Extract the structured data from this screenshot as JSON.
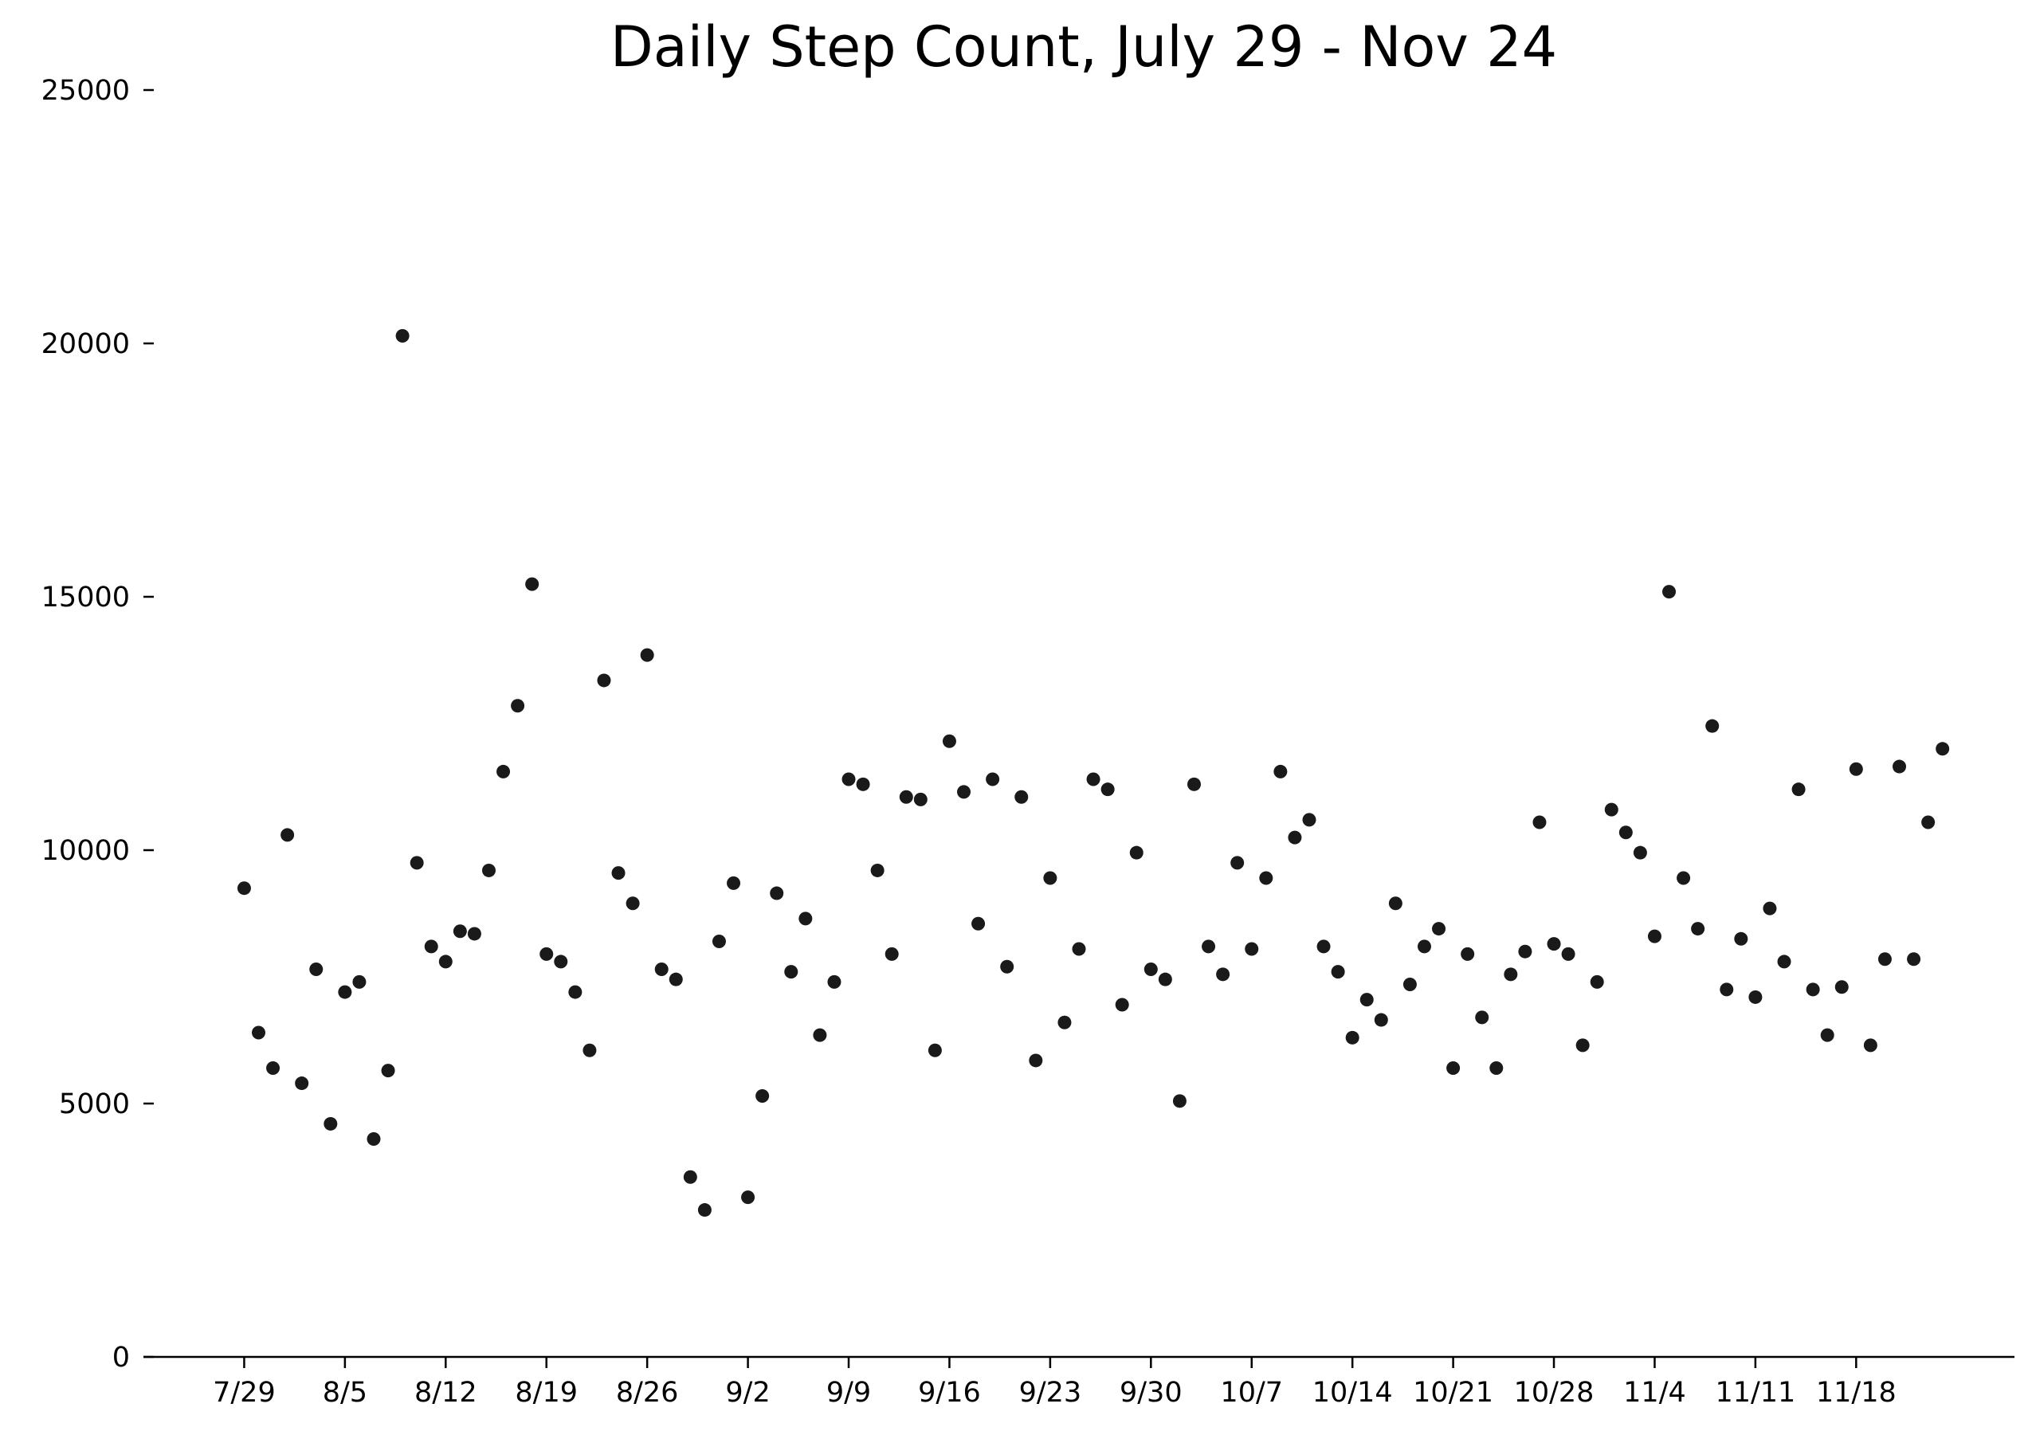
{
  "chart_data": {
    "type": "scatter",
    "title": "Daily Step Count, July 29 - Nov 24",
    "xlabel": "",
    "ylabel": "",
    "ylim": [
      0,
      25000
    ],
    "yticks": [
      0,
      5000,
      10000,
      15000,
      20000,
      25000
    ],
    "xticks": [
      "7/29",
      "8/5",
      "8/12",
      "8/19",
      "8/26",
      "9/2",
      "9/9",
      "9/16",
      "9/23",
      "9/30",
      "10/7",
      "10/14",
      "10/21",
      "10/28",
      "11/4",
      "11/11",
      "11/18"
    ],
    "x_range": [
      "7/22",
      "11/29"
    ],
    "grid": false,
    "legend": "none",
    "marker_color": "#1a1a1a",
    "x": [
      "7/29",
      "7/30",
      "7/31",
      "8/1",
      "8/2",
      "8/3",
      "8/4",
      "8/5",
      "8/6",
      "8/7",
      "8/8",
      "8/9",
      "8/10",
      "8/11",
      "8/12",
      "8/13",
      "8/14",
      "8/15",
      "8/16",
      "8/17",
      "8/18",
      "8/19",
      "8/20",
      "8/21",
      "8/22",
      "8/23",
      "8/24",
      "8/25",
      "8/26",
      "8/27",
      "8/28",
      "8/29",
      "8/30",
      "8/31",
      "9/1",
      "9/2",
      "9/3",
      "9/4",
      "9/5",
      "9/6",
      "9/7",
      "9/8",
      "9/9",
      "9/10",
      "9/11",
      "9/12",
      "9/13",
      "9/14",
      "9/15",
      "9/16",
      "9/17",
      "9/18",
      "9/19",
      "9/20",
      "9/21",
      "9/22",
      "9/23",
      "9/24",
      "9/25",
      "9/26",
      "9/27",
      "9/28",
      "9/29",
      "9/30",
      "10/1",
      "10/2",
      "10/3",
      "10/4",
      "10/5",
      "10/6",
      "10/7",
      "10/8",
      "10/9",
      "10/10",
      "10/11",
      "10/12",
      "10/13",
      "10/14",
      "10/15",
      "10/16",
      "10/17",
      "10/18",
      "10/19",
      "10/20",
      "10/21",
      "10/22",
      "10/23",
      "10/24",
      "10/25",
      "10/26",
      "10/27",
      "10/28",
      "10/29",
      "10/30",
      "10/31",
      "11/1",
      "11/2",
      "11/3",
      "11/4",
      "11/5",
      "11/6",
      "11/7",
      "11/8",
      "11/9",
      "11/10",
      "11/11",
      "11/12",
      "11/13",
      "11/14",
      "11/15",
      "11/16",
      "11/17",
      "11/18",
      "11/19",
      "11/20",
      "11/21",
      "11/22",
      "11/23",
      "11/24"
    ],
    "y": [
      9250,
      6400,
      5700,
      10300,
      5400,
      7650,
      4600,
      7200,
      7400,
      4300,
      5650,
      20150,
      9750,
      8100,
      7800,
      8400,
      8350,
      9600,
      11550,
      12850,
      15250,
      7950,
      7800,
      7200,
      6050,
      13350,
      9550,
      8950,
      13850,
      7650,
      7450,
      3550,
      2900,
      8200,
      9350,
      3150,
      5150,
      9150,
      7600,
      8650,
      6350,
      7400,
      11400,
      11300,
      9600,
      7950,
      11050,
      11000,
      6050,
      12150,
      11150,
      8550,
      11400,
      7700,
      11050,
      5850,
      9450,
      6600,
      8050,
      11400,
      11200,
      6950,
      9950,
      7650,
      7450,
      5050,
      11300,
      8100,
      7550,
      9750,
      8050,
      9450,
      11550,
      10250,
      10600,
      8100,
      7600,
      6300,
      7050,
      6650,
      8950,
      7350,
      8100,
      8450,
      5700,
      7950,
      6700,
      5700,
      7550,
      8000,
      10550,
      8150,
      7950,
      6150,
      7400,
      10800,
      10350,
      9950,
      8300,
      15100,
      9450,
      8450,
      12450,
      7250,
      8250,
      7100,
      8850,
      7800,
      11200,
      7250,
      6350,
      7300,
      11600,
      6150,
      7850,
      11650,
      7850,
      10550,
      12000
    ]
  }
}
